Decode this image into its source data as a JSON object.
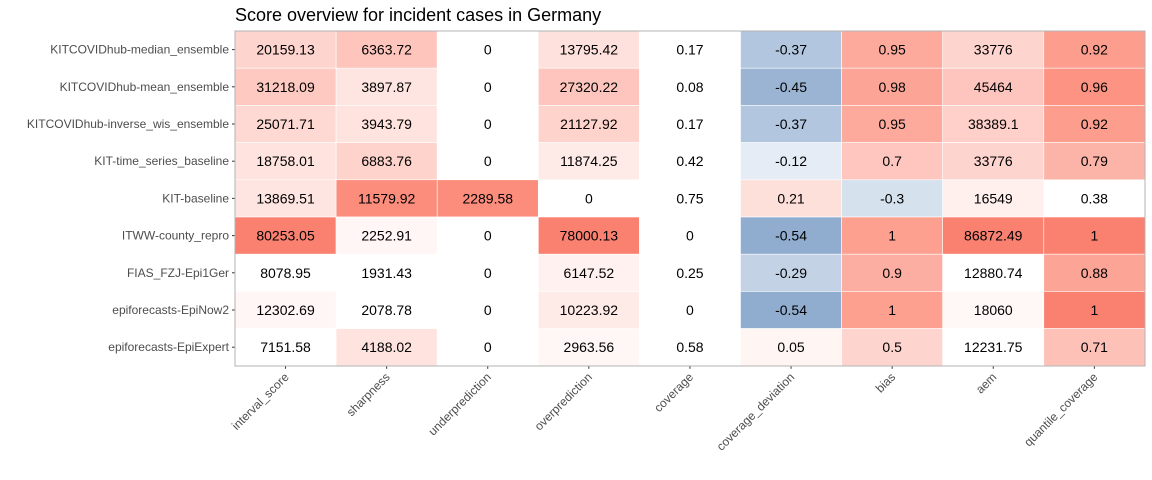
{
  "chart_data": {
    "type": "heatmap",
    "title": "Score overview for incident cases in Germany",
    "xlabel": "",
    "ylabel": "",
    "columns": [
      "interval_score",
      "sharpness",
      "underprediction",
      "overprediction",
      "coverage",
      "coverage_deviation",
      "bias",
      "aem",
      "quantile_coverage"
    ],
    "rows": [
      "KITCOVIDhub-median_ensemble",
      "KITCOVIDhub-mean_ensemble",
      "KITCOVIDhub-inverse_wis_ensemble",
      "KIT-time_series_baseline",
      "KIT-baseline",
      "ITWW-county_repro",
      "FIAS_FZJ-Epi1Ger",
      "epiforecasts-EpiNow2",
      "epiforecasts-EpiExpert"
    ],
    "values": [
      [
        "20159.13",
        "6363.72",
        "0",
        "13795.42",
        "0.17",
        "-0.37",
        "0.95",
        "33776",
        "0.92"
      ],
      [
        "31218.09",
        "3897.87",
        "0",
        "27320.22",
        "0.08",
        "-0.45",
        "0.98",
        "45464",
        "0.96"
      ],
      [
        "25071.71",
        "3943.79",
        "0",
        "21127.92",
        "0.17",
        "-0.37",
        "0.95",
        "38389.1",
        "0.92"
      ],
      [
        "18758.01",
        "6883.76",
        "0",
        "11874.25",
        "0.42",
        "-0.12",
        "0.7",
        "33776",
        "0.79"
      ],
      [
        "13869.51",
        "11579.92",
        "2289.58",
        "0",
        "0.75",
        "0.21",
        "-0.3",
        "16549",
        "0.38"
      ],
      [
        "80253.05",
        "2252.91",
        "0",
        "78000.13",
        "0",
        "-0.54",
        "1",
        "86872.49",
        "1"
      ],
      [
        "8078.95",
        "1931.43",
        "0",
        "6147.52",
        "0.25",
        "-0.29",
        "0.9",
        "12880.74",
        "0.88"
      ],
      [
        "12302.69",
        "2078.78",
        "0",
        "10223.92",
        "0",
        "-0.54",
        "1",
        "18060",
        "1"
      ],
      [
        "7151.58",
        "4188.02",
        "0",
        "2963.56",
        "0.58",
        "0.05",
        "0.5",
        "12231.75",
        "0.71"
      ]
    ],
    "cell_colors": [
      [
        "#fed4cf",
        "#fec5bd",
        "#ffffff",
        "#fee0dc",
        "#ffffff",
        "#b3c6df",
        "#fdaa9d",
        "#fed4cf",
        "#fc9d8e"
      ],
      [
        "#fdc9c1",
        "#fee5e1",
        "#ffffff",
        "#fdc5bd",
        "#ffffff",
        "#9bb4d4",
        "#fca597",
        "#fdc5bd",
        "#fc9383"
      ],
      [
        "#fed9d3",
        "#fee3df",
        "#ffffff",
        "#fed3cc",
        "#ffffff",
        "#b3c6df",
        "#fdaa9d",
        "#fed0c9",
        "#fc9d8e"
      ],
      [
        "#fee3de",
        "#fed3cc",
        "#ffffff",
        "#feeae6",
        "#ffffff",
        "#e6ecf5",
        "#fec6be",
        "#fed4cf",
        "#fdb4a8"
      ],
      [
        "#fee5e1",
        "#fc8c7b",
        "#fc8c7b",
        "#ffffff",
        "#ffffff",
        "#fee0db",
        "#d6e1ee",
        "#fff0ee",
        "#ffffff"
      ],
      [
        "#fa8070",
        "#fff6f5",
        "#ffffff",
        "#fa8070",
        "#ffffff",
        "#90accf",
        "#fda090",
        "#fa8070",
        "#fa8070"
      ],
      [
        "#ffffff",
        "#ffffff",
        "#ffffff",
        "#fff1ef",
        "#ffffff",
        "#c4d2e6",
        "#fdaea2",
        "#ffffff",
        "#fca597"
      ],
      [
        "#fff6f5",
        "#ffffff",
        "#ffffff",
        "#feeae6",
        "#ffffff",
        "#90accf",
        "#fda090",
        "#fff8f7",
        "#fa8070"
      ],
      [
        "#ffffff",
        "#fee3df",
        "#ffffff",
        "#fff7f6",
        "#ffffff",
        "#fff5f3",
        "#fed4cf",
        "#ffffff",
        "#fdc1b8"
      ]
    ],
    "grid": false,
    "legend": "none"
  }
}
